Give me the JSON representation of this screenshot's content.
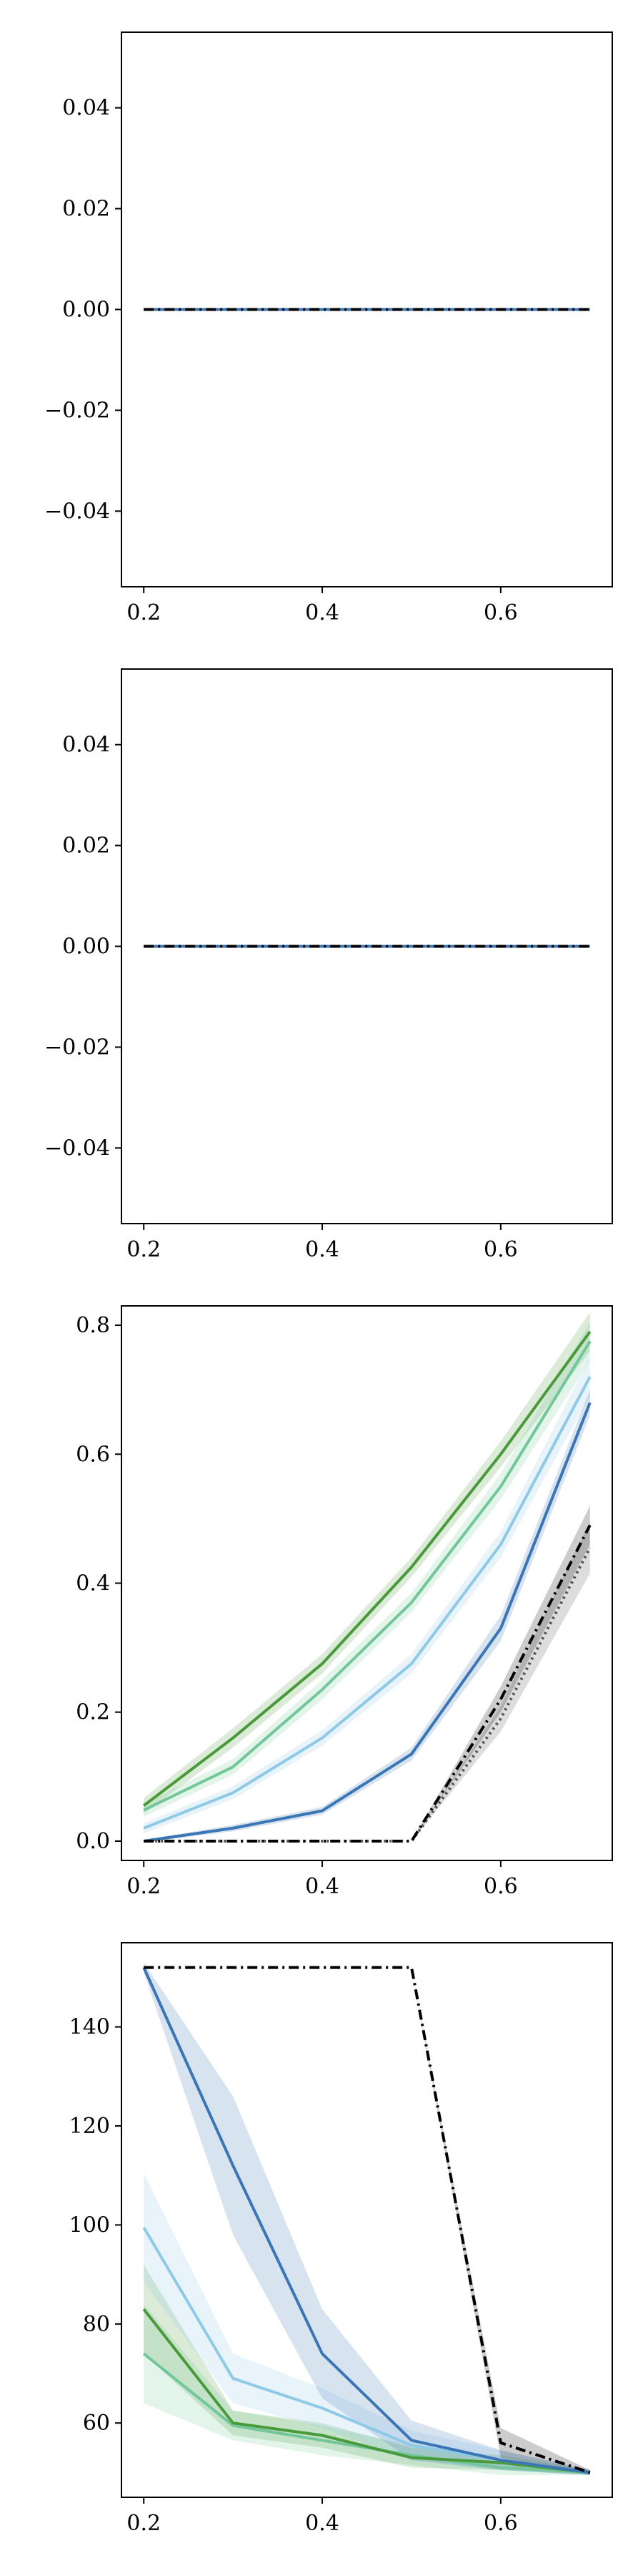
{
  "chart_data": [
    {
      "type": "line",
      "x": [
        0.2,
        0.3,
        0.4,
        0.5,
        0.6,
        0.7
      ],
      "xlim": [
        0.175,
        0.725
      ],
      "ylim": [
        -0.055,
        0.055
      ],
      "xticks": [
        0.2,
        0.4,
        0.6
      ],
      "xtick_labels": [
        "0.2",
        "0.4",
        "0.6"
      ],
      "yticks": [
        -0.04,
        -0.02,
        0.0,
        0.02,
        0.04
      ],
      "ytick_labels": [
        "−0.04",
        "−0.02",
        "0.00",
        "0.02",
        "0.04"
      ],
      "grid": false,
      "series": [
        {
          "color": "#3a75b6",
          "style": "solid",
          "values": [
            0,
            0,
            0,
            0,
            0,
            0
          ]
        },
        {
          "color": "#000000",
          "style": "dashdot",
          "values": [
            0,
            0,
            0,
            0,
            0,
            0
          ]
        }
      ]
    },
    {
      "type": "line",
      "x": [
        0.2,
        0.3,
        0.4,
        0.5,
        0.6,
        0.7
      ],
      "xlim": [
        0.175,
        0.725
      ],
      "ylim": [
        -0.055,
        0.055
      ],
      "xticks": [
        0.2,
        0.4,
        0.6
      ],
      "xtick_labels": [
        "0.2",
        "0.4",
        "0.6"
      ],
      "yticks": [
        -0.04,
        -0.02,
        0.0,
        0.02,
        0.04
      ],
      "ytick_labels": [
        "−0.04",
        "−0.02",
        "0.00",
        "0.02",
        "0.04"
      ],
      "grid": false,
      "series": [
        {
          "color": "#3a75b6",
          "style": "solid",
          "values": [
            0,
            0,
            0,
            0,
            0,
            0
          ]
        },
        {
          "color": "#000000",
          "style": "dashdot",
          "values": [
            0,
            0,
            0,
            0,
            0,
            0
          ]
        }
      ]
    },
    {
      "type": "line",
      "x": [
        0.2,
        0.3,
        0.4,
        0.5,
        0.6,
        0.7
      ],
      "xlim": [
        0.175,
        0.725
      ],
      "ylim": [
        -0.03,
        0.83
      ],
      "xticks": [
        0.2,
        0.4,
        0.6
      ],
      "xtick_labels": [
        "0.2",
        "0.4",
        "0.6"
      ],
      "yticks": [
        0.0,
        0.2,
        0.4,
        0.6,
        0.8
      ],
      "ytick_labels": [
        "0.0",
        "0.2",
        "0.4",
        "0.6",
        "0.8"
      ],
      "grid": false,
      "series": [
        {
          "color": "#4a9a3c",
          "style": "solid",
          "values": [
            0.055,
            0.16,
            0.275,
            0.425,
            0.6,
            0.79
          ],
          "band": [
            0.012,
            0.015,
            0.015,
            0.015,
            0.02,
            0.03
          ]
        },
        {
          "color": "#72c79a",
          "style": "solid",
          "values": [
            0.048,
            0.115,
            0.235,
            0.37,
            0.55,
            0.775
          ],
          "band": [
            0.01,
            0.012,
            0.015,
            0.015,
            0.02,
            0.03
          ]
        },
        {
          "color": "#8ecae6",
          "style": "solid",
          "values": [
            0.02,
            0.075,
            0.16,
            0.275,
            0.46,
            0.72
          ],
          "band": [
            0.008,
            0.01,
            0.012,
            0.015,
            0.02,
            0.03
          ]
        },
        {
          "color": "#3a75b6",
          "style": "solid",
          "values": [
            0.0,
            0.02,
            0.047,
            0.135,
            0.33,
            0.68
          ],
          "band": [
            0.002,
            0.005,
            0.006,
            0.01,
            0.02,
            0.02
          ]
        },
        {
          "color": "#555555",
          "style": "dotted",
          "values": [
            0.0,
            0.0,
            0.0,
            0.0,
            0.19,
            0.455
          ],
          "band": [
            0,
            0,
            0,
            0,
            0.02,
            0.04
          ]
        },
        {
          "color": "#000000",
          "style": "dashdot",
          "values": [
            0.0,
            0.0,
            0.0,
            0.0,
            0.22,
            0.49
          ],
          "band": [
            0,
            0,
            0,
            0,
            0.02,
            0.03
          ]
        }
      ]
    },
    {
      "type": "line",
      "x": [
        0.2,
        0.3,
        0.4,
        0.5,
        0.6,
        0.7
      ],
      "xlim": [
        0.175,
        0.725
      ],
      "ylim": [
        45,
        157
      ],
      "xticks": [
        0.2,
        0.4,
        0.6
      ],
      "xtick_labels": [
        "0.2",
        "0.4",
        "0.6"
      ],
      "yticks": [
        60,
        80,
        100,
        120,
        140
      ],
      "ytick_labels": [
        "60",
        "80",
        "100",
        "120",
        "140"
      ],
      "grid": false,
      "series": [
        {
          "color": "#72c79a",
          "style": "solid",
          "values": [
            74,
            59.5,
            56.5,
            53.5,
            51,
            50
          ],
          "band": [
            10,
            3,
            3,
            2,
            1.5,
            0.5
          ]
        },
        {
          "color": "#4a9a3c",
          "style": "solid",
          "values": [
            83,
            60,
            57.5,
            53,
            52,
            50
          ],
          "band": [
            9,
            2.5,
            2.5,
            2,
            1.5,
            0.5
          ]
        },
        {
          "color": "#8ecae6",
          "style": "solid",
          "values": [
            99.5,
            69,
            63,
            55.5,
            52.5,
            50
          ],
          "band": [
            11,
            5,
            4,
            3,
            2,
            0.5
          ]
        },
        {
          "color": "#3a75b6",
          "style": "solid",
          "values": [
            152,
            112,
            74,
            56.5,
            52.5,
            50
          ],
          "band": [
            1,
            14,
            9,
            4,
            2,
            0.5
          ]
        },
        {
          "color": "#000000",
          "style": "dashdot",
          "values": [
            152,
            152,
            152,
            152,
            56,
            50
          ],
          "band": [
            0,
            0,
            0,
            0,
            3,
            0.5
          ]
        }
      ]
    }
  ]
}
